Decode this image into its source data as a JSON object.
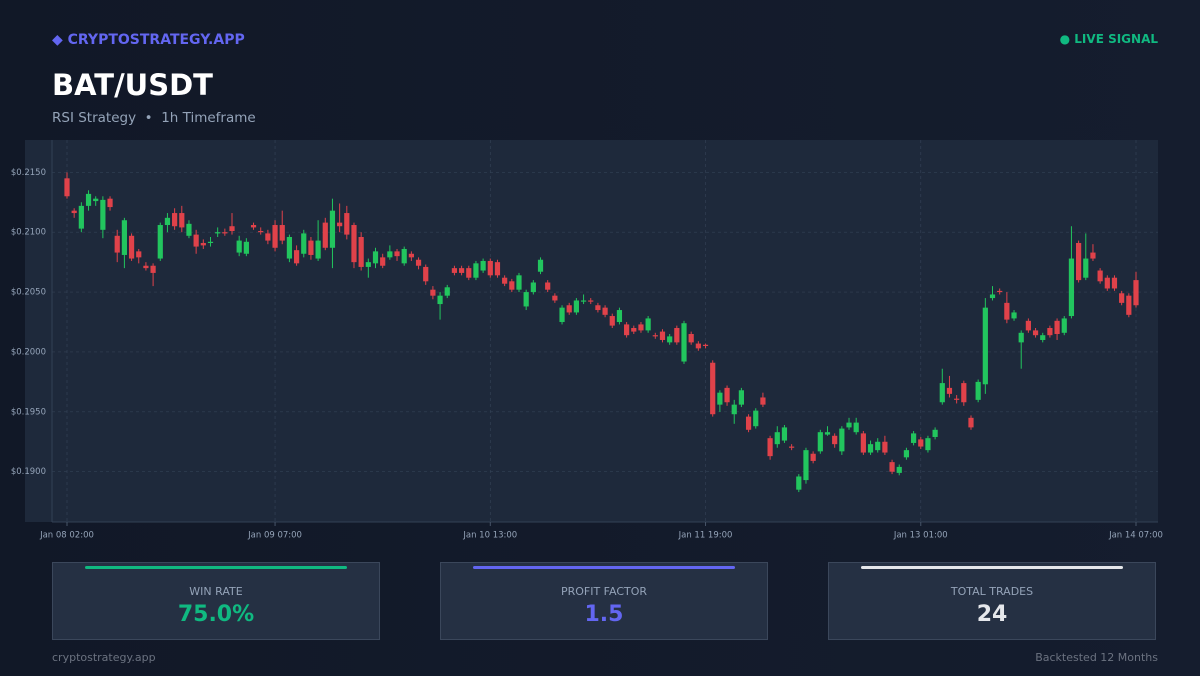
{
  "header": {
    "brand": "◆ CRYPTOSTRATEGY.APP",
    "status": "● LIVE SIGNAL",
    "title": "BAT/USDT",
    "subtitle": "RSI Strategy  •  1h Timeframe"
  },
  "chart_data": {
    "type": "candlestick",
    "up_color": "#22c55e",
    "down_color": "#e0424a",
    "grid": true,
    "ylim": [
      0.1858,
      0.2177
    ],
    "yticks": [
      {
        "value": 0.215,
        "label": "$0.2150"
      },
      {
        "value": 0.21,
        "label": "$0.2100"
      },
      {
        "value": 0.205,
        "label": "$0.2050"
      },
      {
        "value": 0.2,
        "label": "$0.2000"
      },
      {
        "value": 0.195,
        "label": "$0.1950"
      },
      {
        "value": 0.19,
        "label": "$0.1900"
      }
    ],
    "xticks": [
      0,
      29,
      59,
      89,
      119,
      149
    ],
    "categories": [
      "Jan 08 02:00",
      null,
      null,
      null,
      null,
      null,
      null,
      null,
      null,
      null,
      null,
      null,
      null,
      null,
      null,
      null,
      null,
      null,
      null,
      null,
      null,
      null,
      null,
      null,
      null,
      null,
      null,
      null,
      null,
      "Jan 09 07:00",
      null,
      null,
      null,
      null,
      null,
      null,
      null,
      null,
      null,
      null,
      null,
      null,
      null,
      null,
      null,
      null,
      null,
      null,
      null,
      null,
      null,
      null,
      null,
      null,
      null,
      null,
      null,
      null,
      null,
      "Jan 10 13:00",
      null,
      null,
      null,
      null,
      null,
      null,
      null,
      null,
      null,
      null,
      null,
      null,
      null,
      null,
      null,
      null,
      null,
      null,
      null,
      null,
      null,
      null,
      null,
      null,
      null,
      null,
      null,
      null,
      null,
      "Jan 11 19:00",
      null,
      null,
      null,
      null,
      null,
      null,
      null,
      null,
      null,
      null,
      null,
      null,
      null,
      null,
      null,
      null,
      null,
      null,
      null,
      null,
      null,
      null,
      null,
      null,
      null,
      null,
      null,
      null,
      null,
      "Jan 13 01:00",
      null,
      null,
      null,
      null,
      null,
      null,
      null,
      null,
      null,
      null,
      null,
      null,
      null,
      null,
      null,
      null,
      null,
      null,
      null,
      null,
      null,
      null,
      null,
      null,
      null,
      null,
      null,
      null,
      null,
      "Jan 14 07:00"
    ],
    "candles": [
      [
        0.2145,
        0.215,
        0.2128,
        0.213
      ],
      [
        0.2118,
        0.212,
        0.2112,
        0.2116
      ],
      [
        0.2103,
        0.2125,
        0.21,
        0.2122
      ],
      [
        0.2122,
        0.2135,
        0.2118,
        0.2132
      ],
      [
        0.2126,
        0.213,
        0.2122,
        0.2128
      ],
      [
        0.2102,
        0.213,
        0.2095,
        0.2127
      ],
      [
        0.2128,
        0.213,
        0.2118,
        0.2121
      ],
      [
        0.2097,
        0.2102,
        0.2075,
        0.2083
      ],
      [
        0.2081,
        0.2112,
        0.207,
        0.211
      ],
      [
        0.2097,
        0.2099,
        0.2076,
        0.2078
      ],
      [
        0.2084,
        0.2086,
        0.2074,
        0.2079
      ],
      [
        0.2072,
        0.2075,
        0.2068,
        0.207
      ],
      [
        0.2072,
        0.2074,
        0.2055,
        0.2066
      ],
      [
        0.2078,
        0.2108,
        0.2076,
        0.2106
      ],
      [
        0.2106,
        0.2116,
        0.21,
        0.2112
      ],
      [
        0.2116,
        0.212,
        0.2102,
        0.2105
      ],
      [
        0.2116,
        0.2122,
        0.21,
        0.2104
      ],
      [
        0.2097,
        0.211,
        0.2095,
        0.2107
      ],
      [
        0.2098,
        0.2102,
        0.2082,
        0.2088
      ],
      [
        0.2091,
        0.2094,
        0.2086,
        0.2089
      ],
      [
        0.2091,
        0.2096,
        0.2088,
        0.2092
      ],
      [
        0.2099,
        0.2104,
        0.2096,
        0.21
      ],
      [
        0.21,
        0.2103,
        0.2097,
        0.2099
      ],
      [
        0.2105,
        0.2116,
        0.2098,
        0.2101
      ],
      [
        0.2083,
        0.2097,
        0.208,
        0.2093
      ],
      [
        0.2082,
        0.2095,
        0.208,
        0.2092
      ],
      [
        0.2106,
        0.2108,
        0.2102,
        0.2104
      ],
      [
        0.2101,
        0.2104,
        0.2098,
        0.21
      ],
      [
        0.2099,
        0.2102,
        0.209,
        0.2093
      ],
      [
        0.2106,
        0.211,
        0.2084,
        0.2087
      ],
      [
        0.2106,
        0.2118,
        0.209,
        0.2093
      ],
      [
        0.2078,
        0.2098,
        0.2075,
        0.2096
      ],
      [
        0.2085,
        0.2089,
        0.2072,
        0.2074
      ],
      [
        0.2082,
        0.2102,
        0.2079,
        0.2099
      ],
      [
        0.2093,
        0.2096,
        0.2077,
        0.2081
      ],
      [
        0.2078,
        0.211,
        0.2076,
        0.2093
      ],
      [
        0.2108,
        0.2112,
        0.2085,
        0.2087
      ],
      [
        0.2087,
        0.2128,
        0.207,
        0.2118
      ],
      [
        0.2108,
        0.2124,
        0.21,
        0.2105
      ],
      [
        0.2116,
        0.2122,
        0.2094,
        0.2098
      ],
      [
        0.2106,
        0.2108,
        0.207,
        0.2075
      ],
      [
        0.2096,
        0.21,
        0.2068,
        0.2071
      ],
      [
        0.2071,
        0.2078,
        0.2062,
        0.2075
      ],
      [
        0.2074,
        0.2087,
        0.207,
        0.2084
      ],
      [
        0.2079,
        0.2082,
        0.207,
        0.2072
      ],
      [
        0.2079,
        0.2089,
        0.2077,
        0.2084
      ],
      [
        0.2084,
        0.2086,
        0.2076,
        0.208
      ],
      [
        0.2074,
        0.2088,
        0.2072,
        0.2086
      ],
      [
        0.2082,
        0.2084,
        0.2076,
        0.2079
      ],
      [
        0.2077,
        0.2079,
        0.2069,
        0.2072
      ],
      [
        0.2071,
        0.2073,
        0.2056,
        0.2059
      ],
      [
        0.2052,
        0.2055,
        0.2044,
        0.2047
      ],
      [
        0.204,
        0.205,
        0.2027,
        0.2047
      ],
      [
        0.2047,
        0.2056,
        0.2045,
        0.2054
      ],
      [
        0.207,
        0.2072,
        0.2064,
        0.2066
      ],
      [
        0.207,
        0.2072,
        0.2064,
        0.2066
      ],
      [
        0.207,
        0.2072,
        0.206,
        0.2062
      ],
      [
        0.2062,
        0.2076,
        0.206,
        0.2074
      ],
      [
        0.2068,
        0.2078,
        0.2066,
        0.2076
      ],
      [
        0.2076,
        0.2078,
        0.2062,
        0.2064
      ],
      [
        0.2075,
        0.2077,
        0.2062,
        0.2064
      ],
      [
        0.2062,
        0.2064,
        0.2055,
        0.2057
      ],
      [
        0.2059,
        0.2061,
        0.205,
        0.2052
      ],
      [
        0.2052,
        0.2066,
        0.205,
        0.2064
      ],
      [
        0.2038,
        0.2052,
        0.2035,
        0.205
      ],
      [
        0.205,
        0.206,
        0.2048,
        0.2058
      ],
      [
        0.2067,
        0.2079,
        0.2065,
        0.2077
      ],
      [
        0.2058,
        0.206,
        0.205,
        0.2052
      ],
      [
        0.2047,
        0.2049,
        0.2041,
        0.2043
      ],
      [
        0.2025,
        0.2039,
        0.2023,
        0.2037
      ],
      [
        0.2039,
        0.2041,
        0.2031,
        0.2033
      ],
      [
        0.2033,
        0.2045,
        0.2031,
        0.2043
      ],
      [
        0.2042,
        0.2048,
        0.204,
        0.2043
      ],
      [
        0.2043,
        0.2045,
        0.204,
        0.2042
      ],
      [
        0.2039,
        0.2041,
        0.2033,
        0.2035
      ],
      [
        0.2037,
        0.2039,
        0.2029,
        0.2031
      ],
      [
        0.203,
        0.2032,
        0.202,
        0.2022
      ],
      [
        0.2025,
        0.2037,
        0.2023,
        0.2035
      ],
      [
        0.2023,
        0.2025,
        0.2012,
        0.2014
      ],
      [
        0.202,
        0.2022,
        0.2015,
        0.2017
      ],
      [
        0.2023,
        0.2025,
        0.2016,
        0.2018
      ],
      [
        0.2018,
        0.203,
        0.2016,
        0.2028
      ],
      [
        0.2014,
        0.2016,
        0.2011,
        0.2013
      ],
      [
        0.2017,
        0.2019,
        0.2008,
        0.201
      ],
      [
        0.2008,
        0.2015,
        0.2006,
        0.2013
      ],
      [
        0.202,
        0.2022,
        0.2006,
        0.2008
      ],
      [
        0.1992,
        0.2026,
        0.199,
        0.2024
      ],
      [
        0.2015,
        0.2017,
        0.2006,
        0.2008
      ],
      [
        0.2007,
        0.2009,
        0.2001,
        0.2003
      ],
      [
        0.2006,
        0.2007,
        0.2003,
        0.2005
      ],
      [
        0.1991,
        0.1993,
        0.1946,
        0.1948
      ],
      [
        0.1956,
        0.1968,
        0.195,
        0.1966
      ],
      [
        0.197,
        0.1972,
        0.1955,
        0.1958
      ],
      [
        0.1948,
        0.196,
        0.194,
        0.1956
      ],
      [
        0.1956,
        0.197,
        0.1954,
        0.1968
      ],
      [
        0.1946,
        0.1948,
        0.1933,
        0.1935
      ],
      [
        0.1938,
        0.1953,
        0.1936,
        0.1951
      ],
      [
        0.1962,
        0.1966,
        0.1954,
        0.1956
      ],
      [
        0.1928,
        0.193,
        0.191,
        0.1913
      ],
      [
        0.1923,
        0.1938,
        0.192,
        0.1933
      ],
      [
        0.1926,
        0.1939,
        0.1924,
        0.1937
      ],
      [
        0.1921,
        0.1923,
        0.1918,
        0.192
      ],
      [
        0.1885,
        0.1898,
        0.1883,
        0.1896
      ],
      [
        0.1893,
        0.192,
        0.189,
        0.1918
      ],
      [
        0.1915,
        0.1917,
        0.1907,
        0.1909
      ],
      [
        0.1917,
        0.1935,
        0.1915,
        0.1933
      ],
      [
        0.1931,
        0.1938,
        0.193,
        0.1933
      ],
      [
        0.193,
        0.1932,
        0.192,
        0.1923
      ],
      [
        0.1917,
        0.1938,
        0.1914,
        0.1936
      ],
      [
        0.1937,
        0.1945,
        0.1935,
        0.1941
      ],
      [
        0.1933,
        0.1945,
        0.1931,
        0.1941
      ],
      [
        0.1932,
        0.1934,
        0.1914,
        0.1916
      ],
      [
        0.1916,
        0.1926,
        0.1914,
        0.1923
      ],
      [
        0.1918,
        0.1928,
        0.1916,
        0.1925
      ],
      [
        0.1925,
        0.193,
        0.1914,
        0.1916
      ],
      [
        0.1908,
        0.191,
        0.1898,
        0.19
      ],
      [
        0.1899,
        0.1906,
        0.1897,
        0.1904
      ],
      [
        0.1912,
        0.192,
        0.191,
        0.1918
      ],
      [
        0.1924,
        0.1934,
        0.1922,
        0.1932
      ],
      [
        0.1927,
        0.1929,
        0.1919,
        0.1921
      ],
      [
        0.1918,
        0.193,
        0.1916,
        0.1928
      ],
      [
        0.1929,
        0.1937,
        0.1927,
        0.1935
      ],
      [
        0.1958,
        0.1986,
        0.1956,
        0.1974
      ],
      [
        0.197,
        0.198,
        0.1962,
        0.1965
      ],
      [
        0.1961,
        0.1964,
        0.1957,
        0.196
      ],
      [
        0.1974,
        0.1976,
        0.1955,
        0.1958
      ],
      [
        0.1945,
        0.1947,
        0.1935,
        0.1937
      ],
      [
        0.196,
        0.1977,
        0.1958,
        0.1975
      ],
      [
        0.1973,
        0.2045,
        0.1965,
        0.2037
      ],
      [
        0.2045,
        0.2055,
        0.2043,
        0.2048
      ],
      [
        0.2051,
        0.2053,
        0.2048,
        0.205
      ],
      [
        0.2041,
        0.205,
        0.2024,
        0.2027
      ],
      [
        0.2028,
        0.2035,
        0.2026,
        0.2033
      ],
      [
        0.2008,
        0.2018,
        0.1986,
        0.2016
      ],
      [
        0.2026,
        0.2028,
        0.2016,
        0.2018
      ],
      [
        0.2018,
        0.202,
        0.2012,
        0.2014
      ],
      [
        0.201,
        0.2016,
        0.2008,
        0.2014
      ],
      [
        0.202,
        0.2022,
        0.2012,
        0.2014
      ],
      [
        0.2026,
        0.2028,
        0.201,
        0.2015
      ],
      [
        0.2016,
        0.203,
        0.2014,
        0.2028
      ],
      [
        0.203,
        0.2105,
        0.2028,
        0.2078
      ],
      [
        0.2091,
        0.2093,
        0.2058,
        0.206
      ],
      [
        0.2062,
        0.2099,
        0.206,
        0.2078
      ],
      [
        0.2083,
        0.209,
        0.2076,
        0.2078
      ],
      [
        0.2068,
        0.207,
        0.2057,
        0.2059
      ],
      [
        0.2062,
        0.2064,
        0.2051,
        0.2053
      ],
      [
        0.2062,
        0.2064,
        0.2051,
        0.2053
      ],
      [
        0.2049,
        0.2051,
        0.2039,
        0.2041
      ],
      [
        0.2047,
        0.2049,
        0.2029,
        0.2031
      ],
      [
        0.206,
        0.2067,
        0.2037,
        0.2039
      ]
    ]
  },
  "stats": [
    {
      "label": "WIN RATE",
      "value": "75.0%",
      "color": "#10b981"
    },
    {
      "label": "PROFIT FACTOR",
      "value": "1.5",
      "color": "#6366f1"
    },
    {
      "label": "TOTAL TRADES",
      "value": "24",
      "color": "#e5e7eb"
    }
  ],
  "footer": {
    "left": "cryptostrategy.app",
    "right": "Backtested 12 Months"
  }
}
